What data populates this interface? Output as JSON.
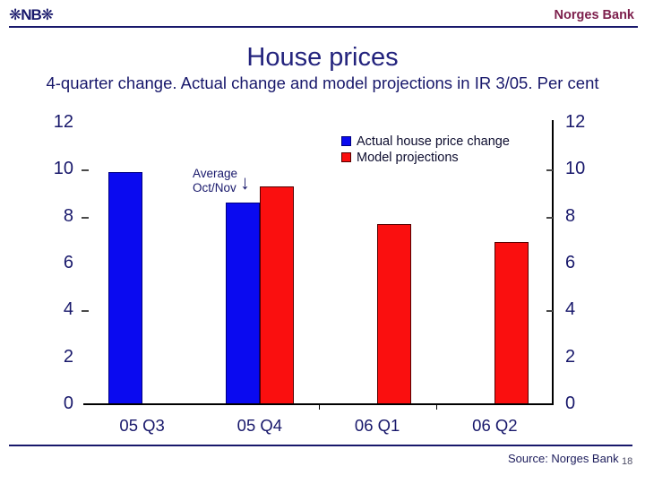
{
  "header": {
    "logo": "❋NB❋",
    "bank_name": "Norges Bank"
  },
  "title": "House prices",
  "subtitle": "4-quarter change. Actual change and model projections in IR 3/05. Per cent",
  "annotation": {
    "line1": "Average",
    "line2": "Oct/Nov",
    "arrow": "↓"
  },
  "footer": {
    "source": "Source: Norges Bank",
    "page_number": "18"
  },
  "colors": {
    "navy_text": "#18186b",
    "maroon_header": "#7d1f4c",
    "axis_line": "#000000",
    "actual_bar": "#0a0af0",
    "actual_bar_border": "#000080",
    "model_bar": "#fa0f0f",
    "model_bar_border": "#550000"
  },
  "chart_data": {
    "type": "bar",
    "title": "House prices",
    "subtitle": "4-quarter change. Actual change and model projections in IR 3/05. Per cent",
    "categories": [
      "05 Q3",
      "05 Q4",
      "06 Q1",
      "06 Q2"
    ],
    "series": [
      {
        "name": "Actual house price change",
        "color": "#0a0af0",
        "border": "#000080",
        "values": [
          9.9,
          8.6,
          null,
          null
        ]
      },
      {
        "name": "Model projections",
        "color": "#fa0f0f",
        "border": "#550000",
        "values": [
          null,
          9.3,
          7.7,
          6.9
        ]
      }
    ],
    "ylim": [
      0,
      12
    ],
    "yticks": [
      0,
      2,
      4,
      6,
      8,
      10,
      12
    ],
    "dash_tick_values": [
      4,
      8,
      10
    ],
    "x_boundary_tick_indices": [
      2,
      3
    ],
    "grid": false,
    "legend_position": "top-right",
    "annotation": "Average Oct/Nov (points to 05 Q4 actual bar)"
  }
}
